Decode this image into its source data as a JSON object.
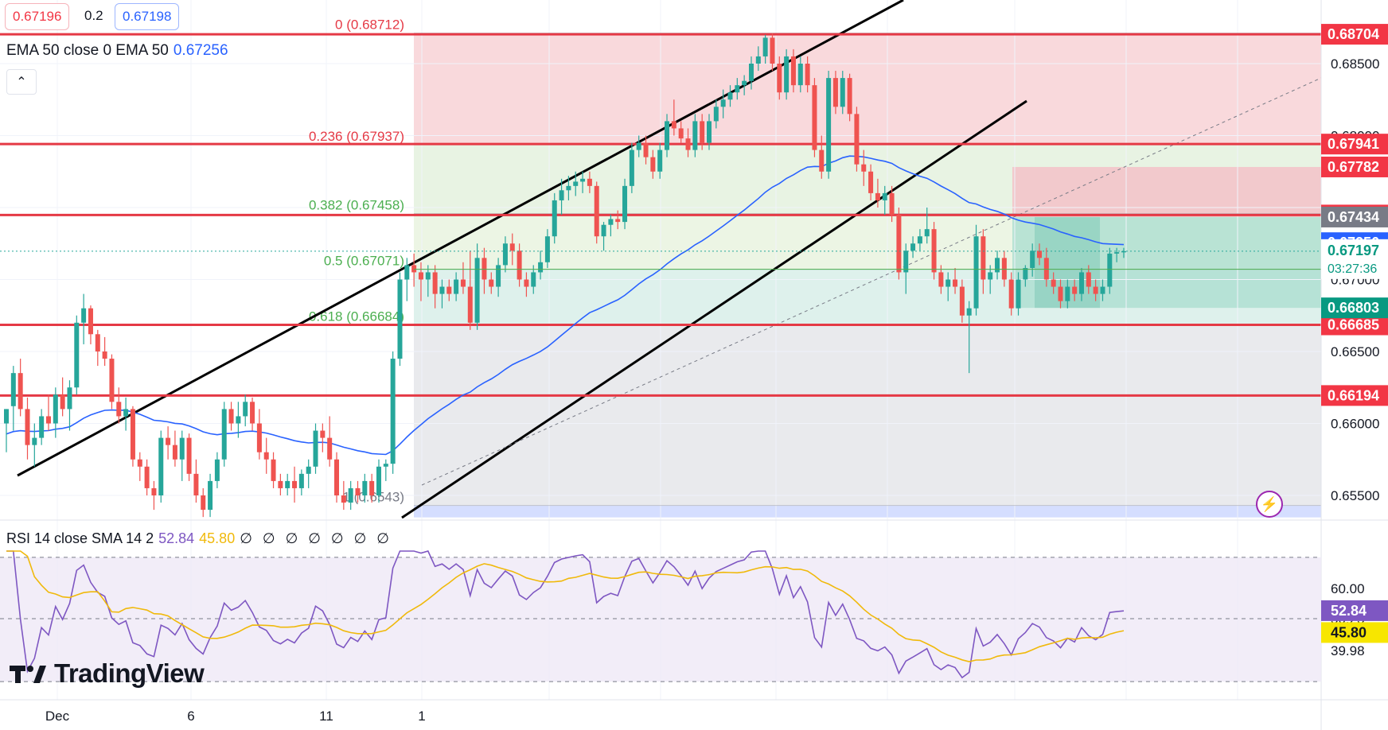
{
  "header": {
    "bid": "0.67196",
    "spread": "0.2",
    "ask": "0.67198"
  },
  "ema_legend": {
    "label": "EMA 50 close 0 EMA 50",
    "value": "0.67256"
  },
  "rsi_legend": {
    "label": "RSI 14 close SMA 14 2",
    "rsi_value": "52.84",
    "sma_value": "45.80",
    "placeholders": "∅ ∅ ∅ ∅ ∅ ∅ ∅"
  },
  "logo": {
    "text": "TradingView"
  },
  "colors": {
    "up": "#26a69a",
    "down": "#ef5350",
    "ema": "#2962ff",
    "rsi": "#7e57c2",
    "rsi_sma": "#f0b90b",
    "level_line": "#e53945"
  },
  "chart_data": {
    "type": "candlestick",
    "instrument": "AUD/USD",
    "y_axis": {
      "range": [
        0.6535,
        0.6915
      ],
      "ticks": [
        "0.68500",
        "0.68000",
        "0.67000",
        "0.66500",
        "0.66000",
        "0.65500"
      ]
    },
    "x_axis": {
      "tick_labels": [
        "Dec",
        "6",
        "11",
        "1"
      ]
    },
    "key_levels": [
      {
        "label": "0.68704",
        "value": 0.68704
      },
      {
        "label": "0.67941",
        "value": 0.67941
      },
      {
        "label": "0.67448",
        "value": 0.67448
      },
      {
        "label": "0.66685",
        "value": 0.66685
      },
      {
        "label": "0.66194",
        "value": 0.66194
      }
    ],
    "price_badges": [
      {
        "label": "0.67782",
        "value": 0.67782,
        "color": "#f23645"
      },
      {
        "label": "0.67434",
        "value": 0.67434,
        "color": "#787b86"
      },
      {
        "label": "0.67256",
        "value": 0.67256,
        "color": "#2962ff"
      },
      {
        "label": "0.66803",
        "value": 0.66803,
        "color": "#089981"
      }
    ],
    "last_price": {
      "label": "0.67197",
      "value": 0.67197,
      "countdown": "03:27:36"
    },
    "fibonacci": {
      "levels": [
        {
          "label": "0 (0.68712)",
          "value": 0.68712
        },
        {
          "label": "0.236 (0.67937)",
          "value": 0.67937
        },
        {
          "label": "0.382 (0.67458)",
          "value": 0.67458
        },
        {
          "label": "0.5 (0.67071)",
          "value": 0.67071
        },
        {
          "label": "0.618 (0.66684)",
          "value": 0.66684
        },
        {
          "label": "1 (0.6543)",
          "value": 0.6543
        }
      ]
    },
    "candles": [
      [
        0.66,
        0.661,
        0.658,
        0.661
      ],
      [
        0.6612,
        0.664,
        0.6595,
        0.6635
      ],
      [
        0.6635,
        0.6645,
        0.6605,
        0.661
      ],
      [
        0.661,
        0.6618,
        0.6575,
        0.6585
      ],
      [
        0.6585,
        0.66,
        0.657,
        0.659
      ],
      [
        0.659,
        0.661,
        0.6585,
        0.6605
      ],
      [
        0.6605,
        0.662,
        0.6595,
        0.66
      ],
      [
        0.66,
        0.6625,
        0.659,
        0.662
      ],
      [
        0.662,
        0.6632,
        0.6605,
        0.661
      ],
      [
        0.661,
        0.663,
        0.6595,
        0.6625
      ],
      [
        0.6625,
        0.6675,
        0.662,
        0.667
      ],
      [
        0.667,
        0.669,
        0.6655,
        0.668
      ],
      [
        0.668,
        0.6682,
        0.6655,
        0.6662
      ],
      [
        0.6662,
        0.6665,
        0.664,
        0.665
      ],
      [
        0.665,
        0.666,
        0.664,
        0.6645
      ],
      [
        0.6645,
        0.6648,
        0.661,
        0.6615
      ],
      [
        0.6615,
        0.6625,
        0.66,
        0.6605
      ],
      [
        0.6605,
        0.6618,
        0.6595,
        0.661
      ],
      [
        0.661,
        0.6612,
        0.657,
        0.6575
      ],
      [
        0.6575,
        0.658,
        0.656,
        0.657
      ],
      [
        0.657,
        0.6575,
        0.655,
        0.6555
      ],
      [
        0.6555,
        0.656,
        0.654,
        0.655
      ],
      [
        0.655,
        0.6595,
        0.6545,
        0.659
      ],
      [
        0.659,
        0.6598,
        0.6575,
        0.6585
      ],
      [
        0.6585,
        0.6595,
        0.657,
        0.6575
      ],
      [
        0.6575,
        0.6595,
        0.656,
        0.659
      ],
      [
        0.659,
        0.6593,
        0.656,
        0.6565
      ],
      [
        0.6565,
        0.6575,
        0.6545,
        0.655
      ],
      [
        0.655,
        0.6555,
        0.6535,
        0.654
      ],
      [
        0.654,
        0.6565,
        0.6535,
        0.656
      ],
      [
        0.656,
        0.658,
        0.6555,
        0.6575
      ],
      [
        0.6575,
        0.6615,
        0.657,
        0.661
      ],
      [
        0.661,
        0.6615,
        0.6595,
        0.66
      ],
      [
        0.66,
        0.6615,
        0.659,
        0.6605
      ],
      [
        0.6605,
        0.662,
        0.6598,
        0.6615
      ],
      [
        0.6615,
        0.6618,
        0.6595,
        0.66
      ],
      [
        0.66,
        0.661,
        0.6575,
        0.658
      ],
      [
        0.658,
        0.659,
        0.6565,
        0.6575
      ],
      [
        0.6575,
        0.658,
        0.6555,
        0.656
      ],
      [
        0.656,
        0.6565,
        0.655,
        0.6555
      ],
      [
        0.6555,
        0.6565,
        0.655,
        0.656
      ],
      [
        0.656,
        0.657,
        0.6545,
        0.6555
      ],
      [
        0.6555,
        0.6568,
        0.655,
        0.6565
      ],
      [
        0.6565,
        0.6575,
        0.6555,
        0.657
      ],
      [
        0.657,
        0.66,
        0.6565,
        0.6595
      ],
      [
        0.6595,
        0.66,
        0.658,
        0.659
      ],
      [
        0.659,
        0.6605,
        0.657,
        0.6575
      ],
      [
        0.6575,
        0.658,
        0.6545,
        0.655
      ],
      [
        0.655,
        0.656,
        0.654,
        0.6545
      ],
      [
        0.6545,
        0.656,
        0.654,
        0.6555
      ],
      [
        0.6555,
        0.656,
        0.6545,
        0.655
      ],
      [
        0.655,
        0.6565,
        0.6545,
        0.656
      ],
      [
        0.656,
        0.6565,
        0.6545,
        0.655
      ],
      [
        0.655,
        0.6575,
        0.6545,
        0.657
      ],
      [
        0.657,
        0.6575,
        0.656,
        0.6572
      ],
      [
        0.6572,
        0.665,
        0.6565,
        0.6645
      ],
      [
        0.6645,
        0.6705,
        0.664,
        0.67
      ],
      [
        0.67,
        0.6715,
        0.6685,
        0.671
      ],
      [
        0.671,
        0.6718,
        0.6695,
        0.6705
      ],
      [
        0.6705,
        0.6712,
        0.6685,
        0.67
      ],
      [
        0.67,
        0.671,
        0.6688,
        0.6705
      ],
      [
        0.6705,
        0.671,
        0.668,
        0.669
      ],
      [
        0.669,
        0.67,
        0.668,
        0.6695
      ],
      [
        0.6695,
        0.67,
        0.6685,
        0.669
      ],
      [
        0.669,
        0.6705,
        0.6685,
        0.67
      ],
      [
        0.67,
        0.6712,
        0.669,
        0.6695
      ],
      [
        0.6695,
        0.672,
        0.6665,
        0.667
      ],
      [
        0.667,
        0.6725,
        0.6665,
        0.6715
      ],
      [
        0.6715,
        0.6722,
        0.669,
        0.67
      ],
      [
        0.67,
        0.6705,
        0.669,
        0.6695
      ],
      [
        0.6695,
        0.6715,
        0.6688,
        0.671
      ],
      [
        0.671,
        0.673,
        0.6705,
        0.6725
      ],
      [
        0.6725,
        0.6732,
        0.671,
        0.672
      ],
      [
        0.672,
        0.6725,
        0.6695,
        0.67
      ],
      [
        0.67,
        0.6705,
        0.6688,
        0.6695
      ],
      [
        0.6695,
        0.671,
        0.669,
        0.6705
      ],
      [
        0.6705,
        0.672,
        0.67,
        0.6712
      ],
      [
        0.6712,
        0.6735,
        0.6708,
        0.673
      ],
      [
        0.673,
        0.676,
        0.6725,
        0.6755
      ],
      [
        0.6755,
        0.677,
        0.6745,
        0.6762
      ],
      [
        0.6762,
        0.6772,
        0.6755,
        0.6765
      ],
      [
        0.6765,
        0.6775,
        0.6758,
        0.6768
      ],
      [
        0.6768,
        0.6775,
        0.676,
        0.677
      ],
      [
        0.677,
        0.6775,
        0.676,
        0.6765
      ],
      [
        0.6765,
        0.6768,
        0.6725,
        0.673
      ],
      [
        0.673,
        0.674,
        0.672,
        0.6738
      ],
      [
        0.6738,
        0.6745,
        0.673,
        0.6742
      ],
      [
        0.6742,
        0.6748,
        0.6735,
        0.674
      ],
      [
        0.674,
        0.677,
        0.6735,
        0.6765
      ],
      [
        0.6765,
        0.6795,
        0.676,
        0.679
      ],
      [
        0.679,
        0.68,
        0.6785,
        0.6795
      ],
      [
        0.6795,
        0.68,
        0.678,
        0.6785
      ],
      [
        0.6785,
        0.679,
        0.677,
        0.6775
      ],
      [
        0.6775,
        0.6795,
        0.677,
        0.679
      ],
      [
        0.679,
        0.6815,
        0.6785,
        0.681
      ],
      [
        0.681,
        0.6825,
        0.68,
        0.6805
      ],
      [
        0.6805,
        0.681,
        0.6795,
        0.6798
      ],
      [
        0.6798,
        0.6805,
        0.6785,
        0.679
      ],
      [
        0.679,
        0.6815,
        0.6785,
        0.681
      ],
      [
        0.681,
        0.6815,
        0.679,
        0.6795
      ],
      [
        0.6795,
        0.6815,
        0.679,
        0.681
      ],
      [
        0.681,
        0.6825,
        0.6805,
        0.682
      ],
      [
        0.682,
        0.6832,
        0.6812,
        0.6825
      ],
      [
        0.6825,
        0.6835,
        0.682,
        0.683
      ],
      [
        0.683,
        0.684,
        0.6825,
        0.6835
      ],
      [
        0.6835,
        0.6842,
        0.6828,
        0.6838
      ],
      [
        0.6838,
        0.6855,
        0.6832,
        0.685
      ],
      [
        0.685,
        0.6862,
        0.6845,
        0.6855
      ],
      [
        0.6855,
        0.687,
        0.685,
        0.6868
      ],
      [
        0.6868,
        0.6871,
        0.6845,
        0.685
      ],
      [
        0.685,
        0.6855,
        0.6825,
        0.683
      ],
      [
        0.683,
        0.686,
        0.6825,
        0.6855
      ],
      [
        0.6855,
        0.686,
        0.683,
        0.6835
      ],
      [
        0.6835,
        0.6855,
        0.683,
        0.685
      ],
      [
        0.685,
        0.6855,
        0.683,
        0.6835
      ],
      [
        0.6835,
        0.684,
        0.6785,
        0.679
      ],
      [
        0.679,
        0.68,
        0.677,
        0.6775
      ],
      [
        0.6775,
        0.6845,
        0.677,
        0.684
      ],
      [
        0.684,
        0.6845,
        0.6815,
        0.682
      ],
      [
        0.682,
        0.6845,
        0.6815,
        0.684
      ],
      [
        0.684,
        0.6843,
        0.681,
        0.6815
      ],
      [
        0.6815,
        0.682,
        0.6775,
        0.678
      ],
      [
        0.678,
        0.679,
        0.6765,
        0.6775
      ],
      [
        0.6775,
        0.678,
        0.6755,
        0.676
      ],
      [
        0.676,
        0.677,
        0.675,
        0.6755
      ],
      [
        0.6755,
        0.6765,
        0.6745,
        0.676
      ],
      [
        0.676,
        0.6765,
        0.674,
        0.6745
      ],
      [
        0.6745,
        0.675,
        0.67,
        0.6705
      ],
      [
        0.6705,
        0.6725,
        0.669,
        0.672
      ],
      [
        0.672,
        0.673,
        0.6715,
        0.6725
      ],
      [
        0.6725,
        0.6735,
        0.672,
        0.673
      ],
      [
        0.673,
        0.675,
        0.6725,
        0.6735
      ],
      [
        0.6735,
        0.674,
        0.67,
        0.6705
      ],
      [
        0.6705,
        0.671,
        0.669,
        0.6695
      ],
      [
        0.6695,
        0.6705,
        0.6685,
        0.67
      ],
      [
        0.67,
        0.6708,
        0.669,
        0.6695
      ],
      [
        0.6695,
        0.67,
        0.667,
        0.6675
      ],
      [
        0.6675,
        0.6685,
        0.6635,
        0.668
      ],
      [
        0.668,
        0.6738,
        0.6675,
        0.673
      ],
      [
        0.673,
        0.6735,
        0.669,
        0.67
      ],
      [
        0.67,
        0.671,
        0.669,
        0.6705
      ],
      [
        0.6705,
        0.672,
        0.67,
        0.6715
      ],
      [
        0.6715,
        0.672,
        0.6695,
        0.67
      ],
      [
        0.67,
        0.6705,
        0.6675,
        0.668
      ],
      [
        0.668,
        0.6705,
        0.6675,
        0.67
      ],
      [
        0.67,
        0.671,
        0.6695,
        0.6708
      ],
      [
        0.6708,
        0.6725,
        0.6702,
        0.672
      ],
      [
        0.672,
        0.6725,
        0.671,
        0.6715
      ],
      [
        0.6715,
        0.6722,
        0.6695,
        0.67
      ],
      [
        0.67,
        0.6705,
        0.669,
        0.6695
      ],
      [
        0.6695,
        0.67,
        0.668,
        0.6685
      ],
      [
        0.6685,
        0.67,
        0.668,
        0.6695
      ],
      [
        0.6695,
        0.67,
        0.6685,
        0.669
      ],
      [
        0.669,
        0.6708,
        0.6685,
        0.6705
      ],
      [
        0.6705,
        0.671,
        0.669,
        0.6695
      ],
      [
        0.6695,
        0.67,
        0.6685,
        0.669
      ],
      [
        0.669,
        0.67,
        0.6685,
        0.6695
      ],
      [
        0.6695,
        0.6722,
        0.669,
        0.6718
      ],
      [
        0.6718,
        0.6722,
        0.6712,
        0.6719
      ],
      [
        0.6719,
        0.6722,
        0.6715,
        0.67197
      ]
    ],
    "rsi": {
      "range": [
        20,
        80
      ],
      "ticks": [
        "60.00",
        "50.25",
        "39.98"
      ],
      "levels": [
        70,
        50.25,
        30
      ],
      "badges": [
        {
          "label": "52.84",
          "value": 52.84
        },
        {
          "label": "45.80",
          "value": 45.8
        }
      ]
    }
  }
}
